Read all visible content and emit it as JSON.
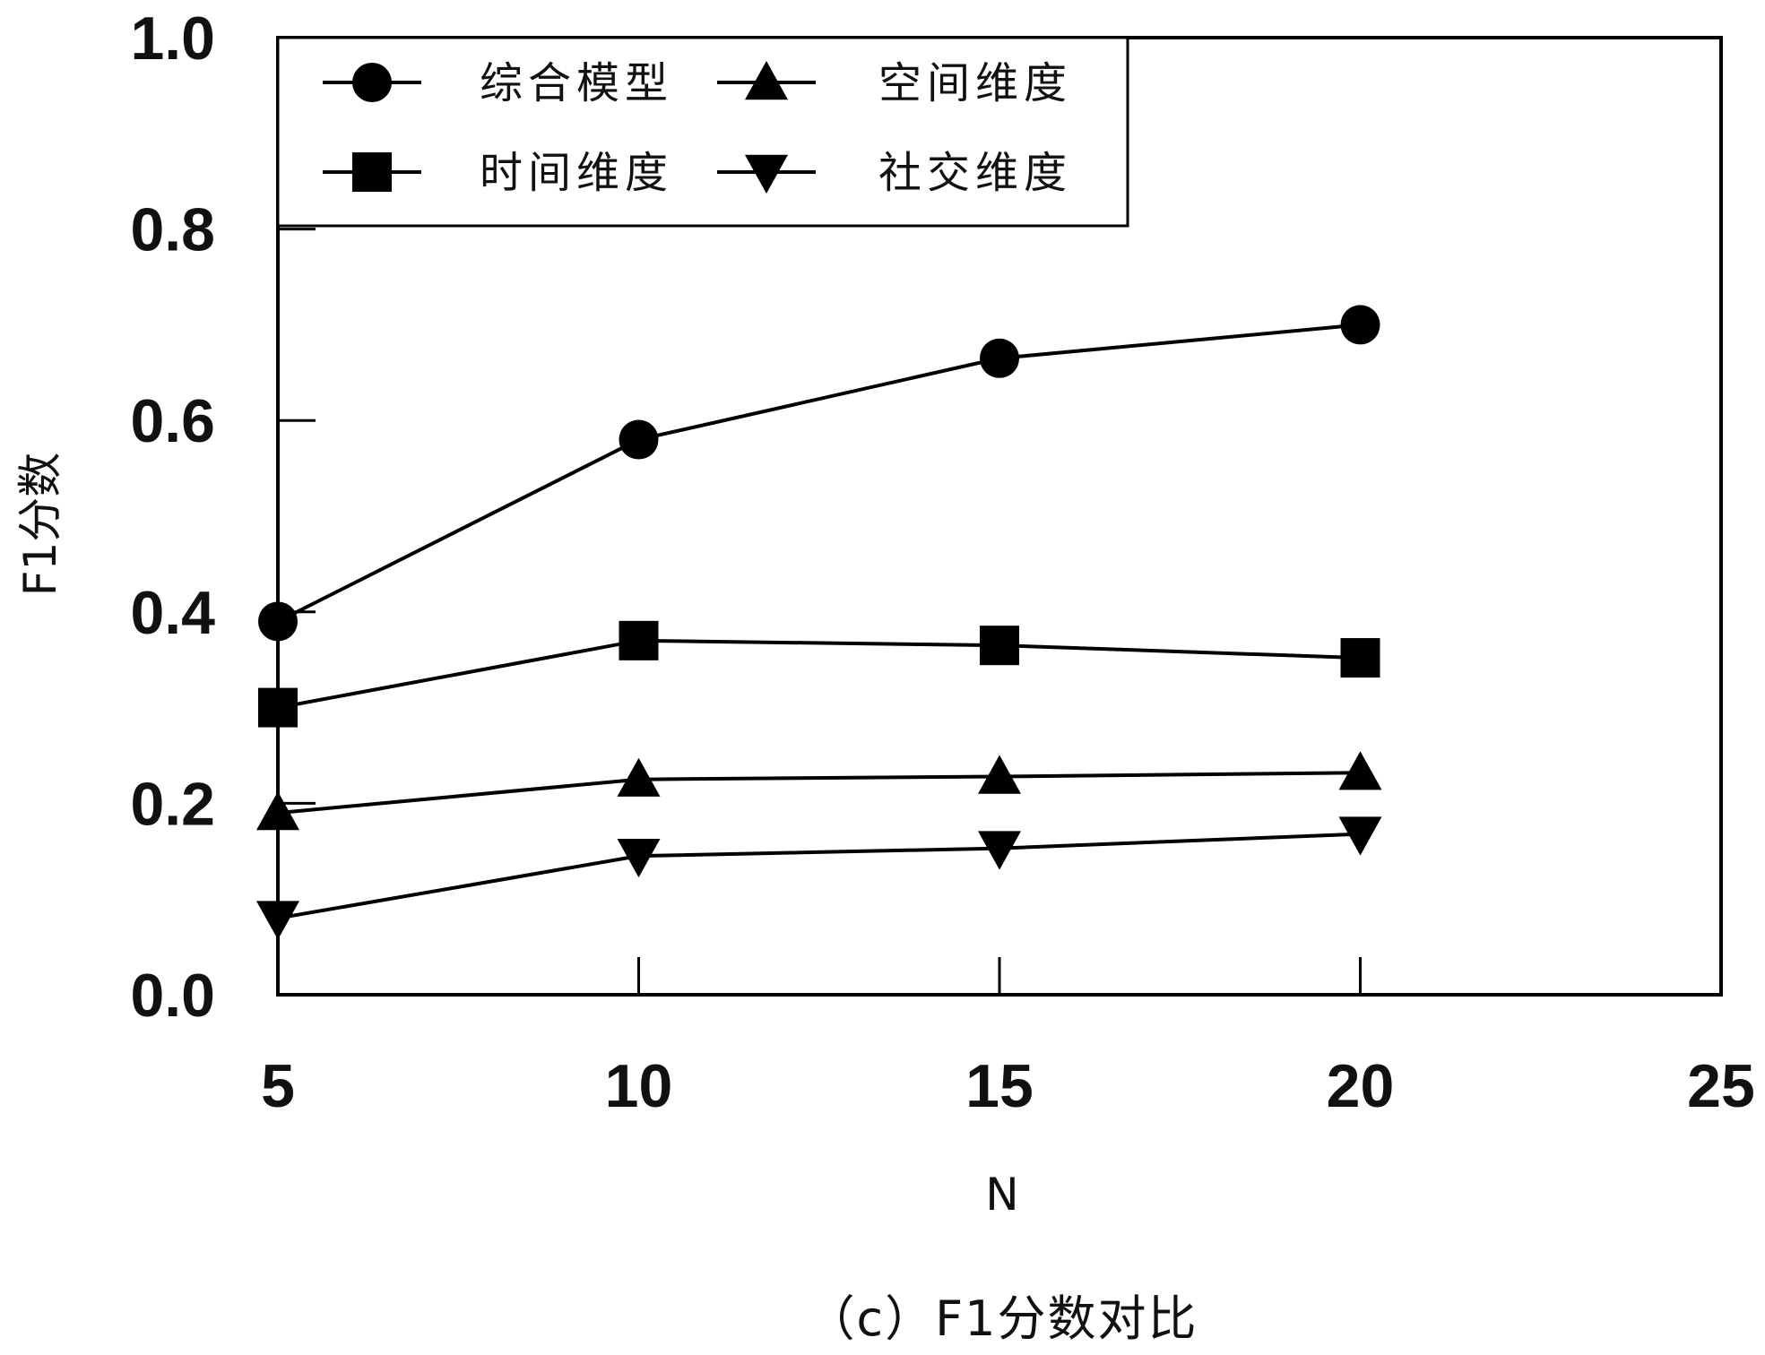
{
  "chart_data": {
    "type": "line",
    "title": "",
    "caption": "（c）F1分数对比",
    "xlabel": "N",
    "ylabel": "F1分数",
    "xlim": [
      5,
      25
    ],
    "ylim": [
      0.0,
      1.0
    ],
    "xticks": [
      "5",
      "10",
      "15",
      "20",
      "25"
    ],
    "yticks": [
      "0.0",
      "0.2",
      "0.4",
      "0.6",
      "0.8",
      "1.0"
    ],
    "grid": false,
    "legend_position": "top-left",
    "x": [
      5,
      10,
      15,
      20
    ],
    "series": [
      {
        "name": "综合模型",
        "marker": "circle",
        "values": [
          0.39,
          0.58,
          0.665,
          0.7
        ]
      },
      {
        "name": "时间维度",
        "marker": "square",
        "values": [
          0.3,
          0.37,
          0.365,
          0.352
        ]
      },
      {
        "name": "空间维度",
        "marker": "triangle-up",
        "values": [
          0.19,
          0.225,
          0.228,
          0.232
        ]
      },
      {
        "name": "社交维度",
        "marker": "triangle-down",
        "values": [
          0.08,
          0.145,
          0.153,
          0.168
        ]
      }
    ]
  }
}
